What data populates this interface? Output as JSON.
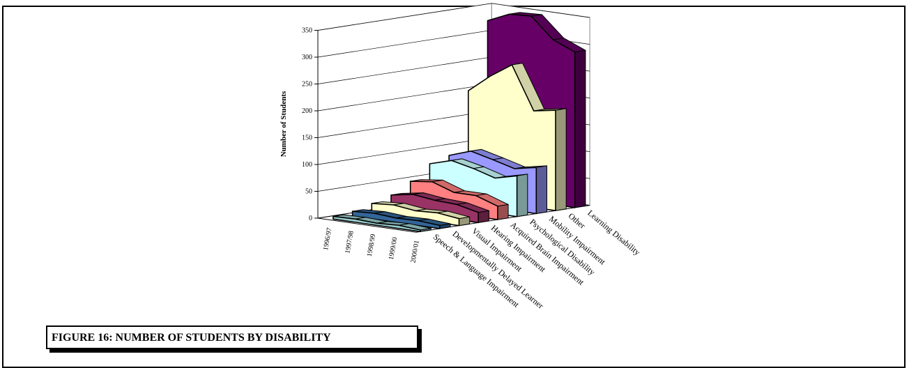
{
  "caption": "FIGURE 16: NUMBER OF STUDENTS BY DISABILITY",
  "chart_data": {
    "type": "area",
    "subtype": "3d-area",
    "title": "",
    "ylabel": "Number of Students",
    "xlabel": "",
    "ylim": [
      0,
      350
    ],
    "yticks": [
      0,
      50,
      100,
      150,
      200,
      250,
      300,
      350
    ],
    "grid": true,
    "legend": "none",
    "x": [
      "1996/97",
      "1997/98",
      "1998/99",
      "1999/00",
      "2000/01"
    ],
    "series": [
      {
        "name": "Speech & Language Impairment",
        "color": "#99CCCC",
        "values": [
          5,
          6,
          4,
          6,
          3
        ]
      },
      {
        "name": "Developmentally Delayed Learner",
        "color": "#336699",
        "values": [
          9,
          11,
          8,
          9,
          6
        ]
      },
      {
        "name": "Visual Impairment",
        "color": "#FFFFCC",
        "values": [
          18,
          21,
          16,
          18,
          13
        ]
      },
      {
        "name": "Hearing Impairment",
        "color": "#993366",
        "values": [
          28,
          35,
          30,
          28,
          19
        ]
      },
      {
        "name": "Acquired Brain Impairment",
        "color": "#FF8080",
        "values": [
          48,
          53,
          39,
          39,
          25
        ]
      },
      {
        "name": "Psychological Disability",
        "color": "#CCFFFF",
        "values": [
          75,
          87,
          78,
          66,
          76
        ]
      },
      {
        "name": "Mobility Impairment",
        "color": "#9999FF",
        "values": [
          85,
          99,
          89,
          78,
          86
        ]
      },
      {
        "name": "Other",
        "color": "#FFFFCC",
        "values": [
          200,
          233,
          260,
          180,
          187
        ]
      },
      {
        "name": "Learning Disability",
        "color": "#660066",
        "values": [
          325,
          343,
          345,
          307,
          290
        ]
      }
    ]
  }
}
